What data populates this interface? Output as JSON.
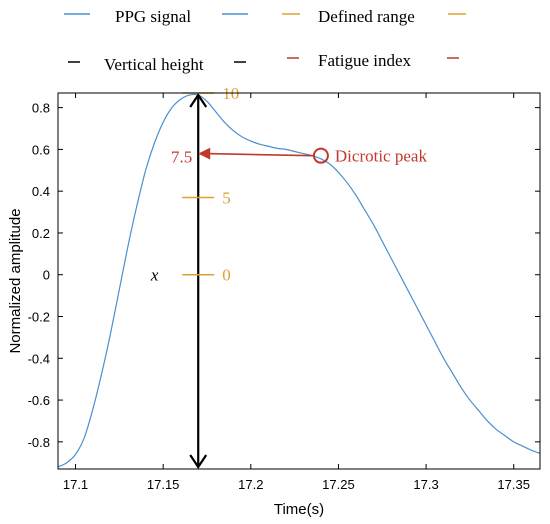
{
  "colors": {
    "signal": "#4a90d0",
    "range": "#e0a030",
    "height": "#000000",
    "fatigue": "#c0392b",
    "frame": "#000000",
    "grid_text": "#000000"
  },
  "legend": {
    "items": [
      {
        "label": "PPG signal",
        "color": "#4a90d0"
      },
      {
        "label": "Defined range",
        "color": "#e0a030"
      },
      {
        "label": "Vertical height",
        "color": "#000000"
      },
      {
        "label": "Fatigue index",
        "color": "#c0392b"
      }
    ]
  },
  "chart_data": {
    "type": "line",
    "xlabel": "Time(s)",
    "ylabel": "Normalized amplitude",
    "xlim": [
      17.09,
      17.365
    ],
    "ylim": [
      -0.93,
      0.87
    ],
    "xticks": [
      "17.1",
      "17.15",
      "17.2",
      "17.25",
      "17.3",
      "17.35"
    ],
    "yticks": [
      "0.8",
      "0.6",
      "0.4",
      "0.2",
      "0",
      "-0.2",
      "-0.4",
      "-0.6",
      "-0.8"
    ],
    "series": [
      {
        "name": "PPG signal",
        "x": [
          17.09,
          17.095,
          17.1,
          17.105,
          17.11,
          17.115,
          17.12,
          17.125,
          17.13,
          17.135,
          17.14,
          17.145,
          17.15,
          17.155,
          17.16,
          17.165,
          17.17,
          17.175,
          17.18,
          17.185,
          17.19,
          17.195,
          17.2,
          17.205,
          17.21,
          17.215,
          17.22,
          17.225,
          17.23,
          17.235,
          17.24,
          17.245,
          17.25,
          17.255,
          17.26,
          17.265,
          17.27,
          17.275,
          17.28,
          17.285,
          17.29,
          17.295,
          17.3,
          17.305,
          17.31,
          17.315,
          17.32,
          17.325,
          17.33,
          17.335,
          17.34,
          17.345,
          17.35,
          17.355,
          17.36,
          17.365
        ],
        "y": [
          -0.92,
          -0.9,
          -0.86,
          -0.78,
          -0.64,
          -0.47,
          -0.28,
          -0.07,
          0.14,
          0.33,
          0.5,
          0.63,
          0.73,
          0.8,
          0.84,
          0.86,
          0.86,
          0.83,
          0.78,
          0.73,
          0.69,
          0.66,
          0.64,
          0.625,
          0.615,
          0.605,
          0.6,
          0.59,
          0.58,
          0.57,
          0.555,
          0.53,
          0.49,
          0.44,
          0.38,
          0.31,
          0.24,
          0.16,
          0.08,
          0.0,
          -0.08,
          -0.16,
          -0.24,
          -0.32,
          -0.4,
          -0.47,
          -0.54,
          -0.6,
          -0.65,
          -0.7,
          -0.74,
          -0.77,
          -0.8,
          -0.82,
          -0.84,
          -0.855
        ]
      }
    ],
    "vertical_height": {
      "x": 17.17,
      "y_top": 0.87,
      "y_bottom": -0.93
    },
    "defined_range": {
      "x": 17.17,
      "marks": [
        {
          "label": "10",
          "y": 0.87
        },
        {
          "label": "5",
          "y": 0.37
        },
        {
          "label": "0",
          "y": 0.0
        }
      ]
    },
    "dicrotic_peak": {
      "x": 17.24,
      "y": 0.57,
      "label": "Dicrotic peak"
    },
    "fatigue_index": {
      "label": "7.5",
      "x": 17.17,
      "y": 0.58
    },
    "x_annotation": {
      "label": "x",
      "x": 17.143,
      "y": 0.0
    }
  }
}
